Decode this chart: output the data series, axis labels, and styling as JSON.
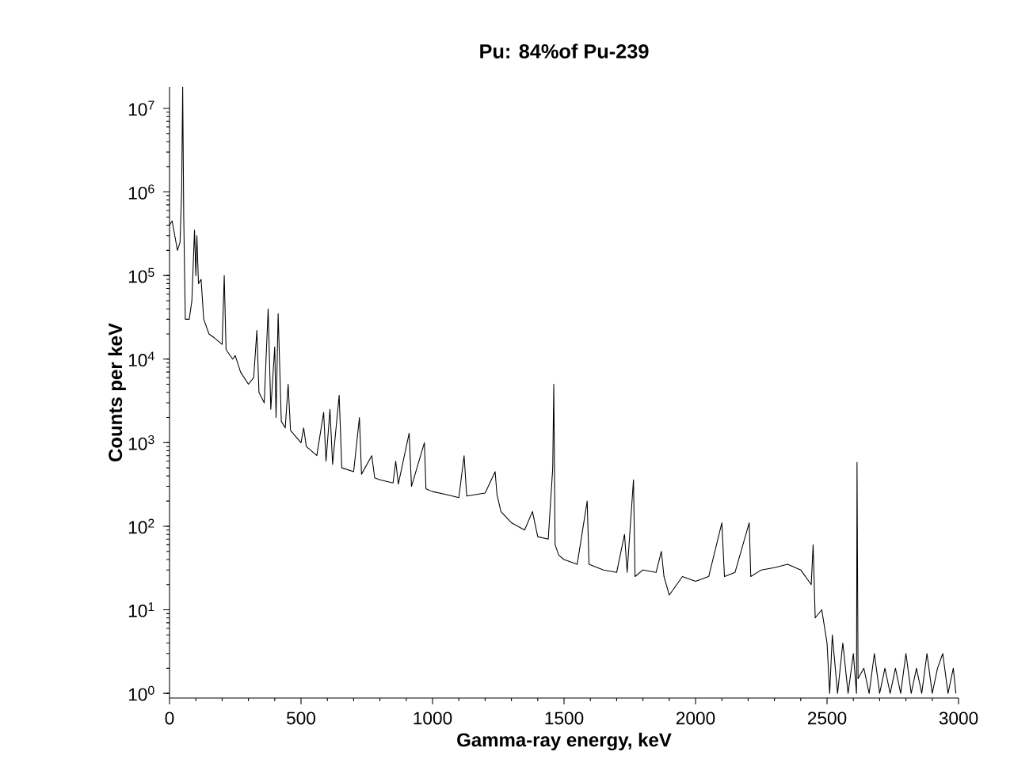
{
  "chart_data": {
    "type": "line",
    "title": "Pu: 84%of Pu-239",
    "xlabel": "Gamma-ray energy, keV",
    "ylabel": "Counts per keV",
    "log": "y",
    "grid": false,
    "marker": "none",
    "line_style": "solid",
    "xlim": [
      0,
      3000
    ],
    "xticks": [
      0,
      500,
      1000,
      1500,
      2000,
      2500,
      3000
    ],
    "ylim": [
      0.88,
      18000000
    ],
    "yticks": [
      {
        "value": 1,
        "label": "10$^{0}$"
      },
      {
        "value": 10,
        "label": "10$^{1}$"
      },
      {
        "value": 100,
        "label": "10$^{2}$"
      },
      {
        "value": 1000,
        "label": "10$^{3}$"
      },
      {
        "value": 10000,
        "label": "10$^{4}$"
      },
      {
        "value": 100000,
        "label": "10$^{5}$"
      },
      {
        "value": 1000000,
        "label": "10$^{6}$"
      },
      {
        "value": 10000000,
        "label": "10$^{7}$"
      }
    ],
    "x": [
      0,
      10,
      20,
      30,
      40,
      46,
      50,
      54,
      60,
      75,
      85,
      95,
      100,
      104,
      110,
      120,
      130,
      150,
      170,
      200,
      208,
      215,
      240,
      250,
      270,
      300,
      320,
      332,
      340,
      360,
      375,
      385,
      400,
      405,
      413,
      425,
      440,
      451,
      460,
      500,
      510,
      520,
      560,
      586,
      595,
      610,
      620,
      645,
      655,
      700,
      722,
      730,
      769,
      780,
      800,
      850,
      860,
      870,
      911,
      920,
      969,
      975,
      1000,
      1050,
      1100,
      1120,
      1130,
      1200,
      1238,
      1245,
      1260,
      1300,
      1350,
      1380,
      1400,
      1440,
      1457,
      1461,
      1466,
      1480,
      1500,
      1550,
      1588,
      1595,
      1650,
      1700,
      1730,
      1740,
      1764,
      1770,
      1800,
      1850,
      1870,
      1880,
      1900,
      1950,
      2000,
      2050,
      2100,
      2110,
      2150,
      2204,
      2210,
      2250,
      2300,
      2350,
      2400,
      2440,
      2447,
      2455,
      2480,
      2500,
      2510,
      2520,
      2540,
      2560,
      2580,
      2600,
      2612,
      2614,
      2618,
      2640,
      2660,
      2680,
      2700,
      2720,
      2740,
      2760,
      2780,
      2800,
      2820,
      2840,
      2860,
      2880,
      2900,
      2920,
      2940,
      2960,
      2980,
      2990
    ],
    "series": [
      {
        "color": "#000000",
        "values": [
          400000,
          450000,
          300000,
          200000,
          250000,
          1000000,
          18000000,
          500000,
          30000,
          30000,
          50000,
          350000,
          100000,
          300000,
          80000,
          90000,
          30000,
          20000,
          18000,
          15000,
          100000,
          13000,
          10000,
          11000,
          7000,
          5000,
          6000,
          22000,
          4000,
          3000,
          40000,
          2500,
          14000,
          2000,
          35000,
          1800,
          1500,
          5000,
          1400,
          1000,
          1500,
          900,
          700,
          2300,
          600,
          2500,
          550,
          3700,
          500,
          450,
          2000,
          420,
          700,
          380,
          360,
          330,
          600,
          320,
          1300,
          300,
          1000,
          280,
          260,
          240,
          220,
          700,
          230,
          250,
          450,
          240,
          150,
          110,
          90,
          150,
          75,
          70,
          500,
          5000,
          60,
          45,
          40,
          35,
          200,
          35,
          30,
          28,
          80,
          28,
          360,
          25,
          30,
          28,
          50,
          25,
          15,
          25,
          22,
          25,
          110,
          25,
          28,
          110,
          25,
          30,
          32,
          35,
          30,
          20,
          60,
          8,
          10,
          4,
          1,
          5,
          1,
          4,
          1,
          3,
          1,
          580,
          1.5,
          2,
          1,
          3,
          1,
          2,
          1,
          2,
          1,
          3,
          1,
          2,
          1,
          3,
          1,
          2,
          3,
          1,
          2,
          1
        ]
      }
    ]
  }
}
